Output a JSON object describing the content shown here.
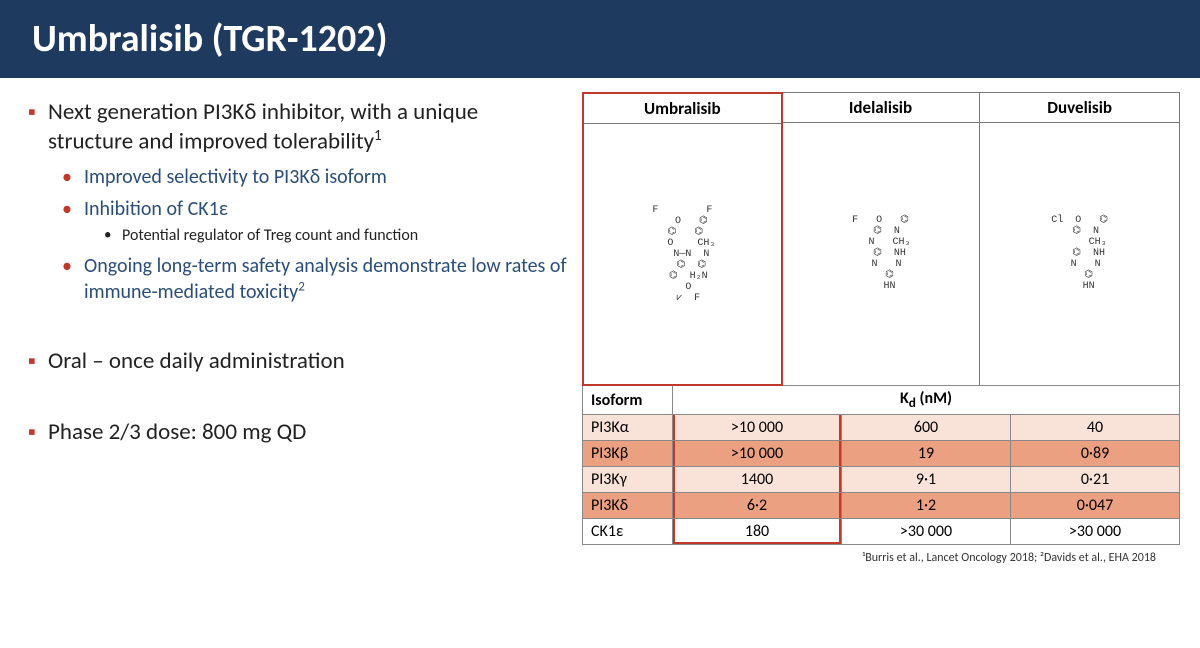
{
  "title": "Umbralisib (TGR-1202)",
  "bullets": {
    "b1": "Next generation PI3Kδ inhibitor, with a unique structure and improved tolerability",
    "b1_sup": "1",
    "b1a": "Improved selectivity to PI3Kδ isoform",
    "b1b": "Inhibition of CK1ε",
    "b1b_i": "Potential regulator of Treg count and function",
    "b1c": "Ongoing long-term safety analysis demonstrate low rates of immune-mediated toxicity",
    "b1c_sup": "2",
    "b2": "Oral – once daily administration",
    "b3": "Phase 2/3 dose: 800 mg QD"
  },
  "drugs": [
    "Umbralisib",
    "Idelalisib",
    "Duvelisib"
  ],
  "mol_placeholders": [
    "F        F\n   O   ⌬\n ⌬   ⌬\n   O    CH₃\n   N—N  N\n   ⌬  ⌬\n  ⌬  H₂N\n  O\n  ⩗  F",
    "F   O   ⌬\n  ⌬  N\n   N   CH₃\n   ⌬  NH\n  N   N\n   ⌬\n   HN",
    "Cl  O   ⌬\n  ⌬  N\n      CH₃\n   ⌬  NH\n  N   N\n   ⌬\n   HN"
  ],
  "table": {
    "iso_header": "Isoform",
    "kd_header": "K",
    "kd_sub": "d",
    "kd_unit": " (nM)",
    "rows": [
      {
        "iso": "PI3Kα",
        "v": [
          ">10 000",
          "600",
          "40"
        ],
        "style": "light"
      },
      {
        "iso": "PI3Kβ",
        "v": [
          ">10 000",
          "19",
          "0·89"
        ],
        "style": "dark"
      },
      {
        "iso": "PI3Kγ",
        "v": [
          "1400",
          "9·1",
          "0·21"
        ],
        "style": "light"
      },
      {
        "iso": "PI3Kδ",
        "v": [
          "6·2",
          "1·2",
          "0·047"
        ],
        "style": "dark"
      },
      {
        "iso": "CK1ε",
        "v": [
          "180",
          ">30 000",
          ">30 000"
        ],
        "style": "plain"
      }
    ]
  },
  "footnote": "¹Burris et al., Lancet Oncology 2018; ²Davids et al., EHA 2018",
  "colors": {
    "title_bg": "#1f3a5f",
    "accent_red": "#c0392b",
    "sub_blue": "#2a4d7a",
    "row_light": "#f9e2d7",
    "row_dark": "#eca082"
  },
  "highlight_drug_index": 0
}
